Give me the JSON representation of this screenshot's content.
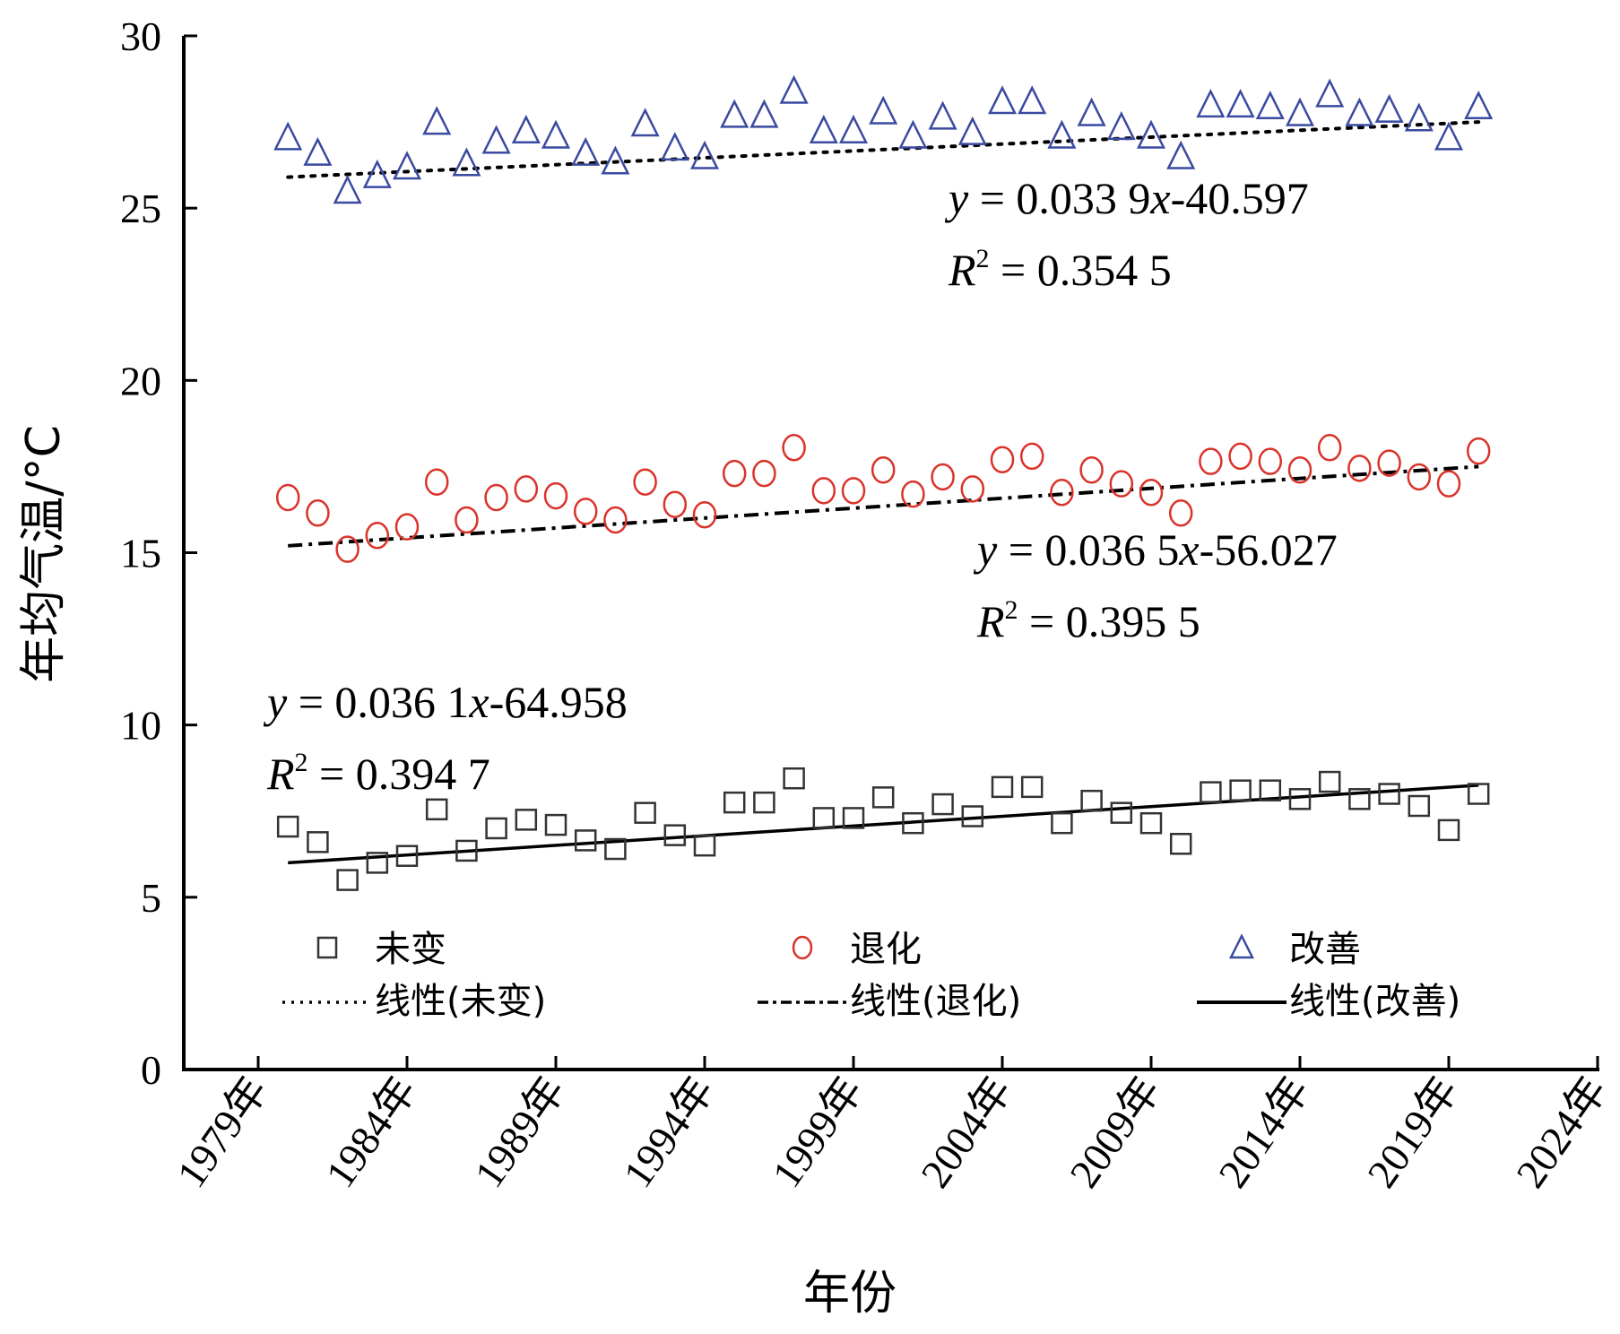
{
  "chart_data": {
    "type": "scatter",
    "title": "",
    "xlabel": "年份",
    "ylabel": "年均气温/°C",
    "ylim": [
      0,
      30
    ],
    "xlim": [
      1976.5,
      2024
    ],
    "yticks": [
      0,
      5,
      10,
      15,
      20,
      25,
      30
    ],
    "ytick_labels": [
      "0",
      "5",
      "10",
      "15",
      "20",
      "25",
      "30"
    ],
    "xticks": [
      1979,
      1984,
      1989,
      1994,
      1999,
      2004,
      2009,
      2014,
      2019,
      2024
    ],
    "xtick_labels": [
      "1979年",
      "1984年",
      "1989年",
      "1994年",
      "1999年",
      "2004年",
      "2009年",
      "2014年",
      "2019年",
      "2024年"
    ],
    "grid": false,
    "legend_position": "bottom-inside",
    "x": [
      1980,
      1981,
      1982,
      1983,
      1984,
      1985,
      1986,
      1987,
      1988,
      1989,
      1990,
      1991,
      1992,
      1993,
      1994,
      1995,
      1996,
      1997,
      1998,
      1999,
      2000,
      2001,
      2002,
      2003,
      2004,
      2005,
      2006,
      2007,
      2008,
      2009,
      2010,
      2011,
      2012,
      2013,
      2014,
      2015,
      2016,
      2017,
      2018,
      2019,
      2020
    ],
    "series": [
      {
        "name": "未变",
        "marker": "square",
        "color": "#333333",
        "values": [
          7.05,
          6.6,
          5.5,
          6.0,
          6.2,
          7.55,
          6.35,
          7.0,
          7.25,
          7.1,
          6.65,
          6.4,
          7.45,
          6.8,
          6.5,
          7.75,
          7.75,
          8.45,
          7.3,
          7.3,
          7.9,
          7.15,
          7.7,
          7.35,
          8.2,
          8.2,
          7.15,
          7.8,
          7.45,
          7.15,
          6.55,
          8.05,
          8.1,
          8.1,
          7.85,
          8.35,
          7.85,
          8.0,
          7.65,
          6.95,
          8.0
        ]
      },
      {
        "name": "退化",
        "marker": "circle",
        "color": "#d9332a",
        "values": [
          16.6,
          16.15,
          15.1,
          15.5,
          15.75,
          17.05,
          15.95,
          16.6,
          16.85,
          16.65,
          16.2,
          15.95,
          17.05,
          16.4,
          16.1,
          17.3,
          17.3,
          18.05,
          16.8,
          16.8,
          17.4,
          16.7,
          17.2,
          16.85,
          17.7,
          17.8,
          16.75,
          17.4,
          17.0,
          16.75,
          16.15,
          17.65,
          17.8,
          17.65,
          17.4,
          18.05,
          17.45,
          17.6,
          17.2,
          17.0,
          17.95
        ]
      },
      {
        "name": "改善",
        "marker": "triangle",
        "color": "#3a4aa0",
        "values": [
          27.05,
          26.6,
          25.5,
          25.95,
          26.2,
          27.5,
          26.3,
          26.95,
          27.25,
          27.1,
          26.6,
          26.35,
          27.45,
          26.75,
          26.5,
          27.7,
          27.7,
          28.4,
          27.25,
          27.25,
          27.8,
          27.1,
          27.65,
          27.2,
          28.1,
          28.1,
          27.1,
          27.75,
          27.35,
          27.1,
          26.5,
          28.0,
          28.0,
          27.95,
          27.75,
          28.3,
          27.75,
          27.85,
          27.6,
          27.05,
          27.95
        ]
      }
    ],
    "trendlines": [
      {
        "name": "线性(未变)",
        "style": "dotted",
        "applies_to_points": "改善",
        "x_range": [
          1980,
          2020
        ],
        "y_range": [
          25.9,
          27.5
        ]
      },
      {
        "name": "线性(退化)",
        "style": "dash-dot",
        "applies_to_points": "退化",
        "x_range": [
          1980,
          2020
        ],
        "y_range": [
          15.2,
          17.5
        ]
      },
      {
        "name": "线性(改善)",
        "style": "solid",
        "applies_to_points": "未变",
        "x_range": [
          1980,
          2020
        ],
        "y_range": [
          6.0,
          8.25
        ]
      }
    ],
    "annotations": [
      {
        "id": "top",
        "line1": {
          "y": "y",
          "eq": " = 0.033 9",
          "x": "x",
          "rest": "-40.597"
        },
        "line2": {
          "R": "R",
          "sup": "2",
          "rest": " = 0.354 5"
        }
      },
      {
        "id": "mid",
        "line1": {
          "y": "y",
          "eq": " = 0.036 5",
          "x": "x",
          "rest": "-56.027"
        },
        "line2": {
          "R": "R",
          "sup": "2",
          "rest": " = 0.395 5"
        }
      },
      {
        "id": "bottom",
        "line1": {
          "y": "y",
          "eq": " = 0.036 1",
          "x": "x",
          "rest": "-64.958"
        },
        "line2": {
          "R": "R",
          "sup": "2",
          "rest": " = 0.394 7"
        }
      }
    ],
    "legend": [
      {
        "label": "未变",
        "kind": "square",
        "color": "#333333"
      },
      {
        "label": "退化",
        "kind": "circle",
        "color": "#d9332a"
      },
      {
        "label": "改善",
        "kind": "triangle",
        "color": "#3a4aa0"
      },
      {
        "label": "线性(未变)",
        "kind": "dotted"
      },
      {
        "label": "线性(退化)",
        "kind": "dash-dot"
      },
      {
        "label": "线性(改善)",
        "kind": "solid"
      }
    ]
  }
}
